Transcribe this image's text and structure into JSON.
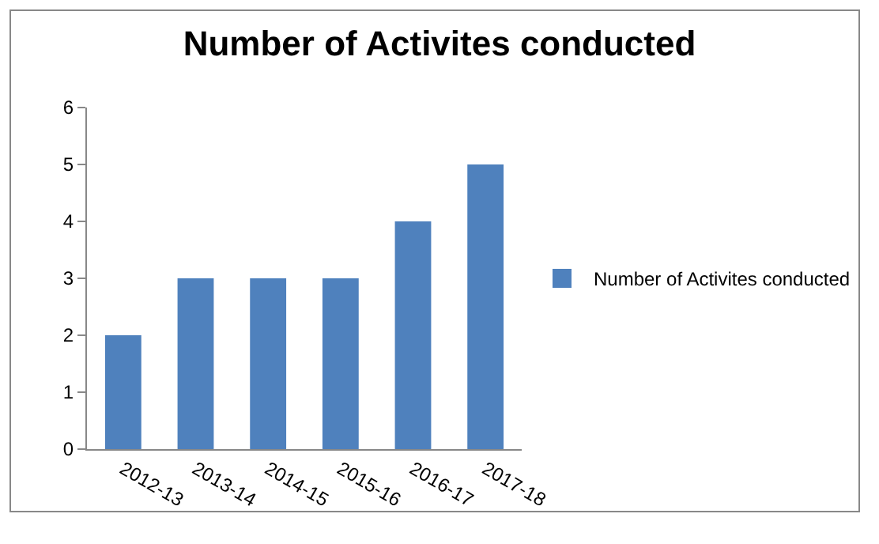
{
  "chart_data": {
    "type": "bar",
    "title": "Number of Activites conducted",
    "categories": [
      "2012-13",
      "2013-14",
      "2014-15",
      "2015-16",
      "2016-17",
      "2017-18"
    ],
    "series": [
      {
        "name": "Number of Activites conducted",
        "color": "#4f81bd",
        "values": [
          2,
          3,
          3,
          3,
          4,
          5
        ]
      }
    ],
    "ylim": [
      0,
      6
    ],
    "yticks": [
      0,
      1,
      2,
      3,
      4,
      5,
      6
    ],
    "grid": false,
    "legend": "right"
  }
}
